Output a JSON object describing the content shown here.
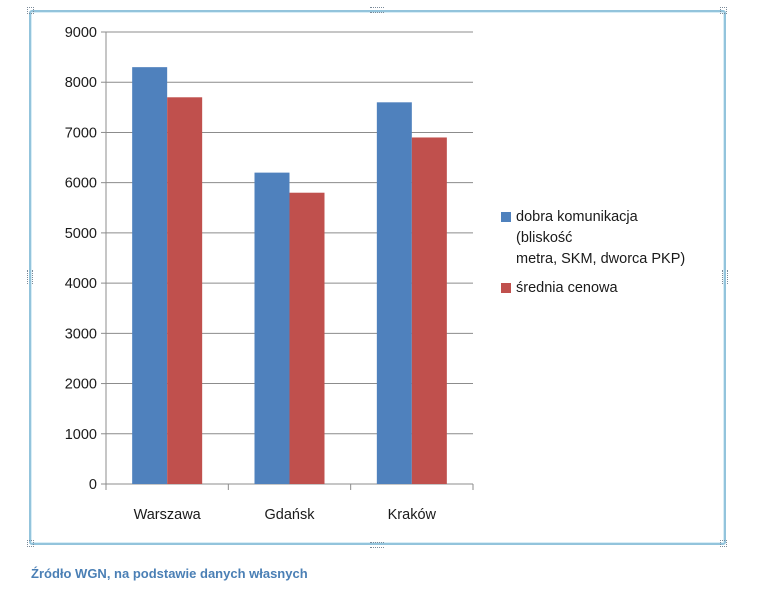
{
  "chart_data": {
    "type": "bar",
    "categories": [
      "Warszawa",
      "Gdańsk",
      "Kraków"
    ],
    "series": [
      {
        "name": "dobra komunikacja\n(bliskość\nmetra, SKM,  dworca PKP)",
        "values": [
          8300,
          6200,
          7600
        ],
        "color": "#4f81bd"
      },
      {
        "name": "średnia cenowa",
        "values": [
          7700,
          5800,
          6900
        ],
        "color": "#c0504d"
      }
    ],
    "ylim": [
      0,
      9000
    ],
    "yticks": [
      "0",
      "1000",
      "2000",
      "3000",
      "4000",
      "5000",
      "6000",
      "7000",
      "8000",
      "9000"
    ],
    "grid": true,
    "legend_position": "right"
  },
  "source": "Źródło WGN, na podstawie danych własnych"
}
